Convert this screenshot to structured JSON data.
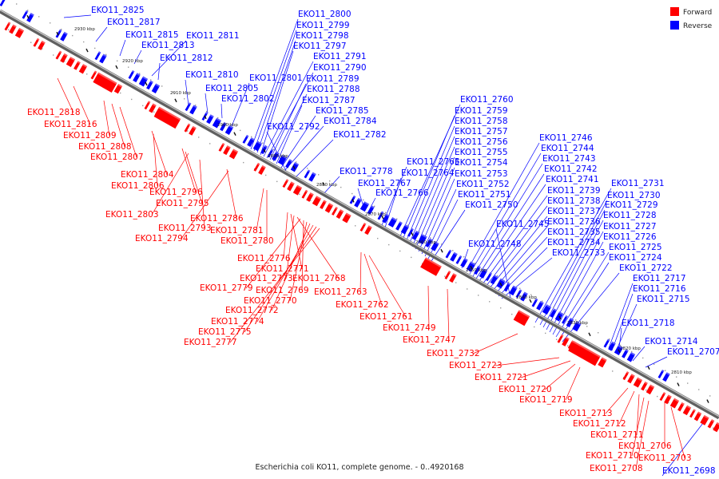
{
  "caption": "Escherichia coli KO11, complete genome. - 0..4920168",
  "legend": [
    {
      "label": "Forward",
      "color": "#ff0000"
    },
    {
      "label": "Reverse",
      "color": "#0000ff"
    }
  ],
  "colors": {
    "forward": "#ff0000",
    "reverse": "#0000ff",
    "backbone": "#808080"
  },
  "ticks": [
    "2930 kbp",
    "2920 kbp",
    "2910 kbp",
    "2900 kbp",
    "2890 kbp",
    "2880 kbp",
    "2870 kbp",
    "2860 kbp",
    "2850 kbp",
    "2840 kbp",
    "2830 kbp",
    "2820 kbp",
    "2810 kbp"
  ],
  "reverse_labels": [
    "EKO11_2825",
    "EKO11_2817",
    "EKO11_2815",
    "EKO11_2813",
    "EKO11_2811",
    "EKO11_2812",
    "EKO11_2810",
    "EKO11_2805",
    "EKO11_2802",
    "EKO11_2801",
    "EKO11_2800",
    "EKO11_2799",
    "EKO11_2798",
    "EKO11_2797",
    "EKO11_2791",
    "EKO11_2790",
    "EKO11_2789",
    "EKO11_2788",
    "EKO11_2787",
    "EKO11_2785",
    "EKO11_2784",
    "EKO11_2792",
    "EKO11_2782",
    "EKO11_2778",
    "EKO11_2767",
    "EKO11_2766",
    "EKO11_2765",
    "EKO11_2764",
    "EKO11_2760",
    "EKO11_2759",
    "EKO11_2758",
    "EKO11_2757",
    "EKO11_2756",
    "EKO11_2755",
    "EKO11_2754",
    "EKO11_2753",
    "EKO11_2752",
    "EKO11_2751",
    "EKO11_2750",
    "EKO11_2748",
    "EKO11_2746",
    "EKO11_2744",
    "EKO11_2743",
    "EKO11_2742",
    "EKO11_2741",
    "EKO11_2739",
    "EKO11_2738",
    "EKO11_2737",
    "EKO11_2736",
    "EKO11_2735",
    "EKO11_2734",
    "EKO11_2733",
    "EKO11_2745",
    "EKO11_2731",
    "EKO11_2730",
    "EKO11_2729",
    "EKO11_2728",
    "EKO11_2727",
    "EKO11_2726",
    "EKO11_2725",
    "EKO11_2724",
    "EKO11_2722",
    "EKO11_2717",
    "EKO11_2716",
    "EKO11_2715",
    "EKO11_2718",
    "EKO11_2714",
    "EKO11_2707",
    "EKO11_2698"
  ],
  "forward_labels": [
    "EKO11_2818",
    "EKO11_2816",
    "EKO11_2809",
    "EKO11_2808",
    "EKO11_2807",
    "EKO11_2804",
    "EKO11_2806",
    "EKO11_2796",
    "EKO11_2795",
    "EKO11_2803",
    "EKO11_2786",
    "EKO11_2793",
    "EKO11_2794",
    "EKO11_2781",
    "EKO11_2780",
    "EKO11_2776",
    "EKO11_2771",
    "EKO11_2773",
    "EKO11_2768",
    "EKO11_2779",
    "EKO11_2769",
    "EKO11_2770",
    "EKO11_2763",
    "EKO11_2772",
    "EKO11_2762",
    "EKO11_2774",
    "EKO11_2761",
    "EKO11_2775",
    "EKO11_2749",
    "EKO11_2777",
    "EKO11_2747",
    "EKO11_2732",
    "EKO11_2723",
    "EKO11_2721",
    "EKO11_2720",
    "EKO11_2719",
    "EKO11_2713",
    "EKO11_2712",
    "EKO11_2711",
    "EKO11_2706",
    "EKO11_2710",
    "EKO11_2703",
    "EKO11_2708"
  ]
}
